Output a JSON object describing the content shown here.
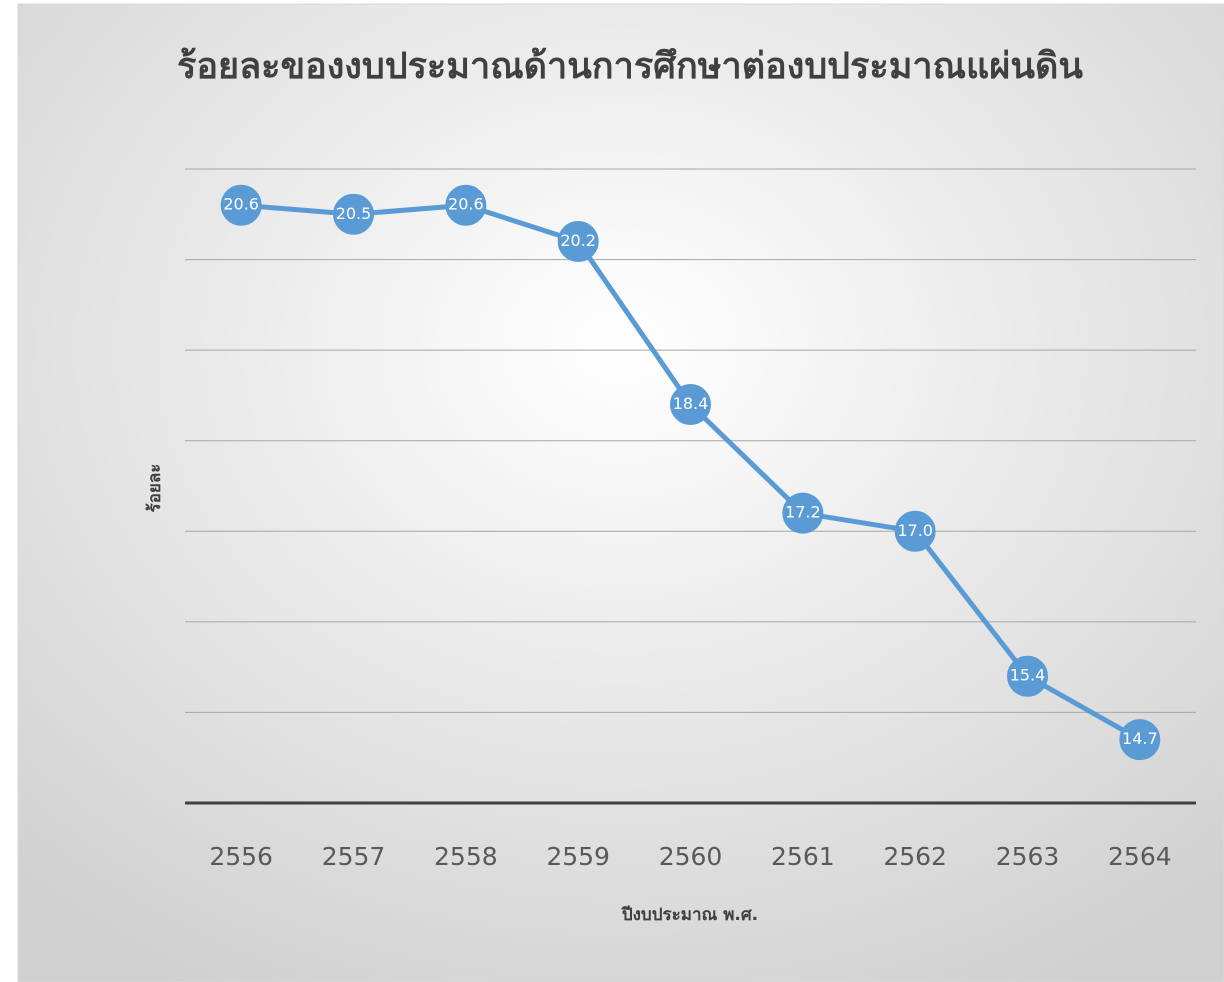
{
  "chart_data": {
    "type": "line",
    "title": "ร้อยละของงบประมาณด้านการศึกษาต่องบประมาณแผ่นดิน",
    "x_label": "ปีงบประมาณ พ.ศ.",
    "y_label": "ร้อยละ",
    "categories": [
      "2556",
      "2557",
      "2558",
      "2559",
      "2560",
      "2561",
      "2562",
      "2563",
      "2564"
    ],
    "series": [
      {
        "name": "ร้อยละ",
        "color": "#5b9bd5",
        "values": [
          20.6,
          20.5,
          20.6,
          20.2,
          18.4,
          17.2,
          17.0,
          15.4,
          14.7
        ],
        "value_labels": [
          "20.6",
          "20.5",
          "20.6",
          "20.2",
          "18.4",
          "17.2",
          "17.0",
          "15.4",
          "14.7"
        ]
      }
    ],
    "ylim": [
      14,
      21
    ],
    "yticks": [
      14,
      15,
      16,
      17,
      18,
      19,
      20,
      21
    ],
    "grid": true
  }
}
